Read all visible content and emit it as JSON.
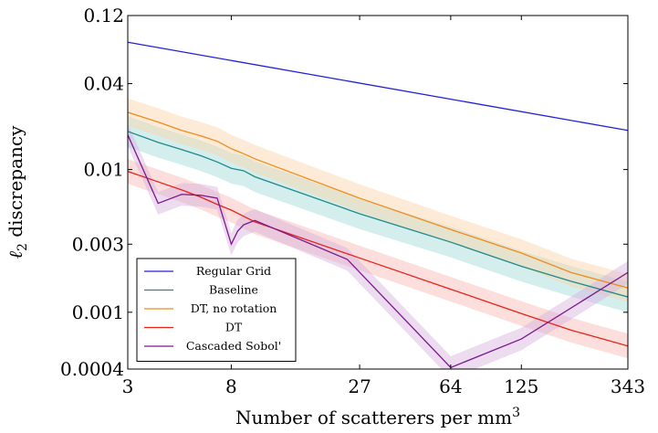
{
  "chart_data": {
    "type": "line",
    "xlabel": "Number of scatterers per mm",
    "xlabel_sup": "3",
    "ylabel": "ℓ",
    "ylabel_sub": "2",
    "ylabel_rest": " discrepancy",
    "x_scale": "log",
    "y_scale": "log",
    "xlim": [
      3,
      343
    ],
    "ylim": [
      0.0004,
      0.12
    ],
    "x_ticks": [
      3,
      8,
      27,
      64,
      125,
      343
    ],
    "x_tick_labels": [
      "3",
      "8",
      "27",
      "64",
      "125",
      "343"
    ],
    "y_ticks": [
      0.0004,
      0.001,
      0.003,
      0.01,
      0.04,
      0.12
    ],
    "y_tick_labels": [
      "0.0004",
      "0.001",
      "0.003",
      "0.01",
      "0.04",
      "0.12"
    ],
    "grid": false,
    "legend_position": "bottom-left",
    "series": [
      {
        "name": "Regular Grid",
        "color": "#2020d8",
        "band": false,
        "x": [
          3,
          343
        ],
        "y": [
          0.078,
          0.0188
        ]
      },
      {
        "name": "Baseline",
        "color": "#1f8a8a",
        "band": true,
        "band_color": "#9fd9d9",
        "band_factor": 1.28,
        "x": [
          3,
          4,
          5,
          6,
          7,
          8,
          9,
          10,
          27,
          64,
          125,
          200,
          343
        ],
        "y": [
          0.0185,
          0.0155,
          0.0138,
          0.0125,
          0.0113,
          0.0102,
          0.0098,
          0.0089,
          0.0049,
          0.0031,
          0.0021,
          0.00165,
          0.00128
        ]
      },
      {
        "name": "DT, no rotation",
        "color": "#f08c1a",
        "band": true,
        "band_color": "#fbd3a6",
        "band_factor": 1.25,
        "x": [
          3,
          4,
          5,
          6,
          7,
          8,
          9,
          10,
          27,
          64,
          125,
          200,
          343
        ],
        "y": [
          0.0252,
          0.0215,
          0.0188,
          0.0172,
          0.0158,
          0.014,
          0.0129,
          0.0119,
          0.0063,
          0.0038,
          0.0026,
          0.0019,
          0.00148
        ]
      },
      {
        "name": "DT",
        "color": "#e8231a",
        "band": true,
        "band_color": "#f8b6b1",
        "band_factor": 1.22,
        "x": [
          3,
          4,
          5,
          6,
          7,
          8,
          9,
          10,
          27,
          64,
          125,
          200,
          343
        ],
        "y": [
          0.0097,
          0.0082,
          0.0072,
          0.0064,
          0.0057,
          0.0052,
          0.0047,
          0.0043,
          0.0024,
          0.00145,
          0.00098,
          0.00075,
          0.00058
        ]
      },
      {
        "name": "Cascaded Sobol'",
        "color": "#7a1a8c",
        "band": true,
        "band_color": "#d6b0dd",
        "band_factor": 1.2,
        "x": [
          3,
          4,
          5,
          6,
          7,
          7.5,
          8,
          8.5,
          9,
          10,
          24,
          64,
          125,
          343
        ],
        "y": [
          0.0175,
          0.0058,
          0.0067,
          0.0066,
          0.0063,
          0.0043,
          0.003,
          0.0037,
          0.0041,
          0.0044,
          0.00235,
          0.00041,
          0.00065,
          0.0019
        ]
      }
    ]
  }
}
